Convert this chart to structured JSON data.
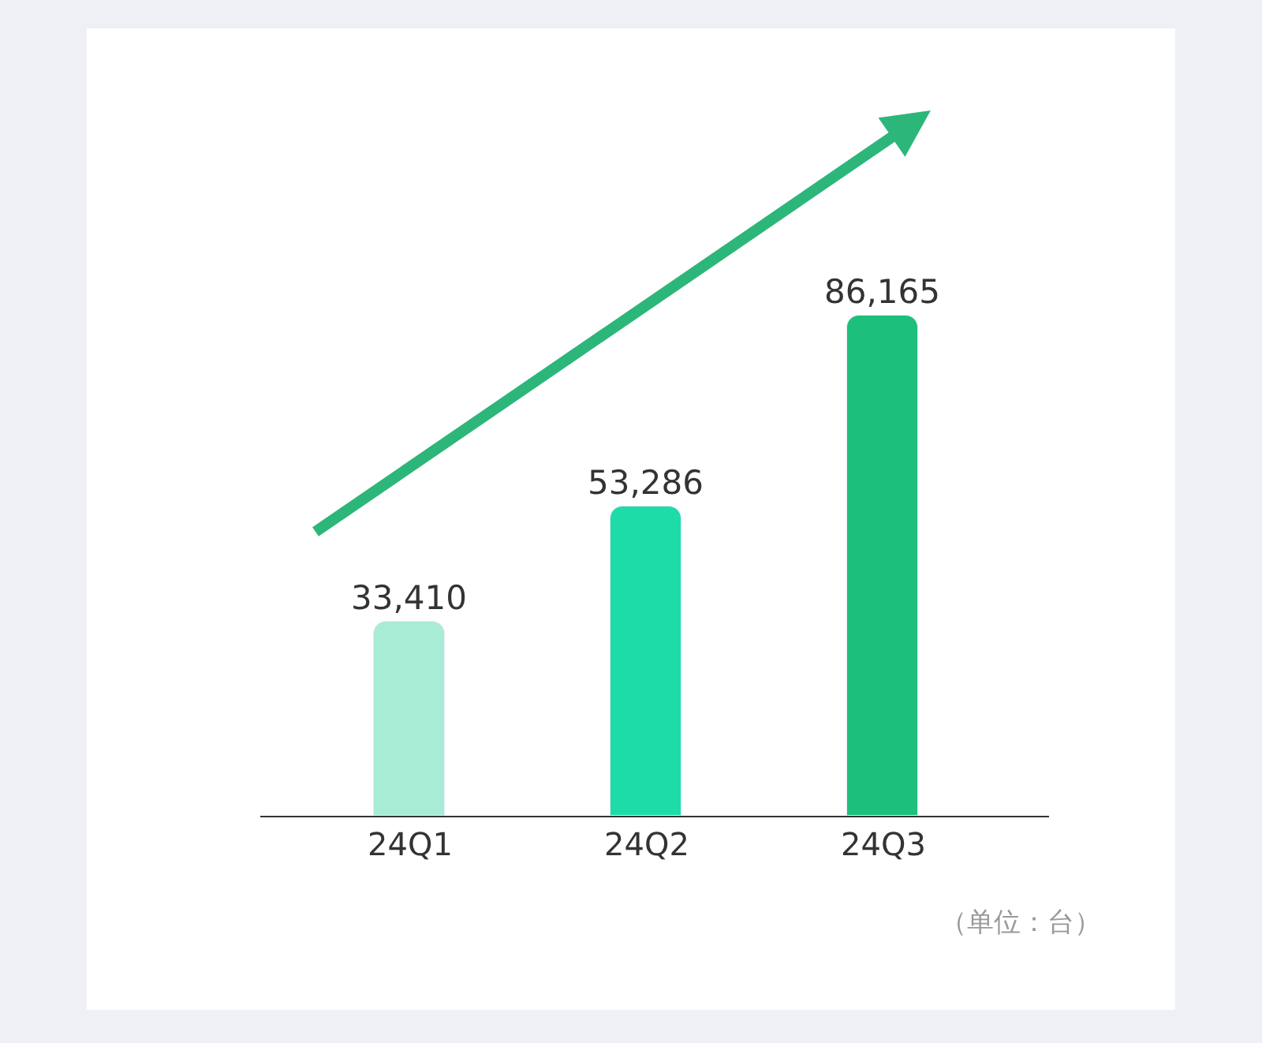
{
  "chart_data": {
    "type": "bar",
    "categories": [
      "24Q1",
      "24Q2",
      "24Q3"
    ],
    "values": [
      33410,
      53286,
      86165
    ],
    "colors": [
      "#a9ecd6",
      "#1ddca8",
      "#1cbf7c"
    ],
    "data_labels": true,
    "value_labels": [
      "33,410",
      "53,286",
      "86,165"
    ],
    "legend": false,
    "tick_labels": "x",
    "annotations": [
      "（单位：台）"
    ]
  }
}
